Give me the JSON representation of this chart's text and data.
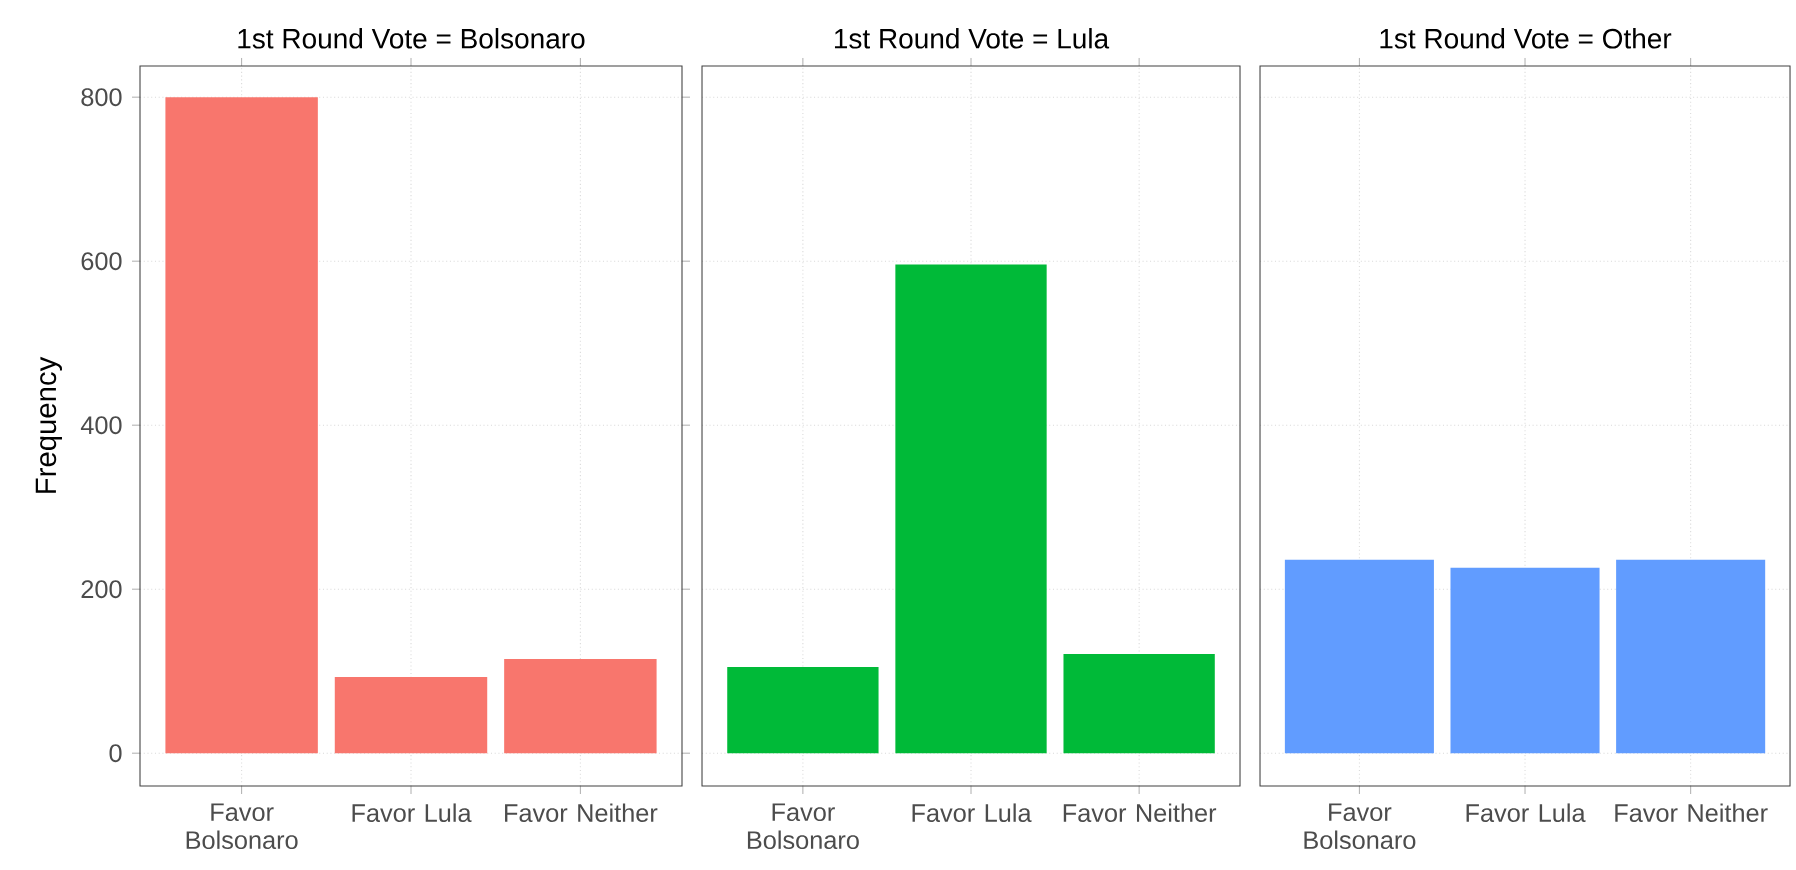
{
  "chart_data": [
    {
      "type": "bar",
      "title": "1st Round Vote = Bolsonaro",
      "ylabel": "Frequency",
      "categories": [
        "Favor Bolsonaro",
        "Favor Lula",
        "Favor Neither"
      ],
      "values": [
        800,
        93,
        115
      ],
      "color": "#f8766d",
      "ylim": [
        -40,
        838
      ],
      "yticks": [
        0,
        200,
        400,
        600,
        800
      ],
      "grid": true
    },
    {
      "type": "bar",
      "title": "1st Round Vote = Lula",
      "categories": [
        "Favor Bolsonaro",
        "Favor Lula",
        "Favor Neither"
      ],
      "values": [
        105,
        596,
        121
      ],
      "color": "#00ba38",
      "ylim": [
        -40,
        838
      ],
      "yticks": [
        0,
        200,
        400,
        600,
        800
      ],
      "grid": true,
      "tick_labels": "x"
    },
    {
      "type": "bar",
      "title": "1st Round Vote = Other",
      "categories": [
        "Favor Bolsonaro",
        "Favor Lula",
        "Favor Neither"
      ],
      "values": [
        236,
        226,
        236
      ],
      "color": "#619cff",
      "ylim": [
        -40,
        838
      ],
      "yticks": [
        0,
        200,
        400,
        600,
        800
      ],
      "grid": true,
      "tick_labels": "x"
    }
  ]
}
